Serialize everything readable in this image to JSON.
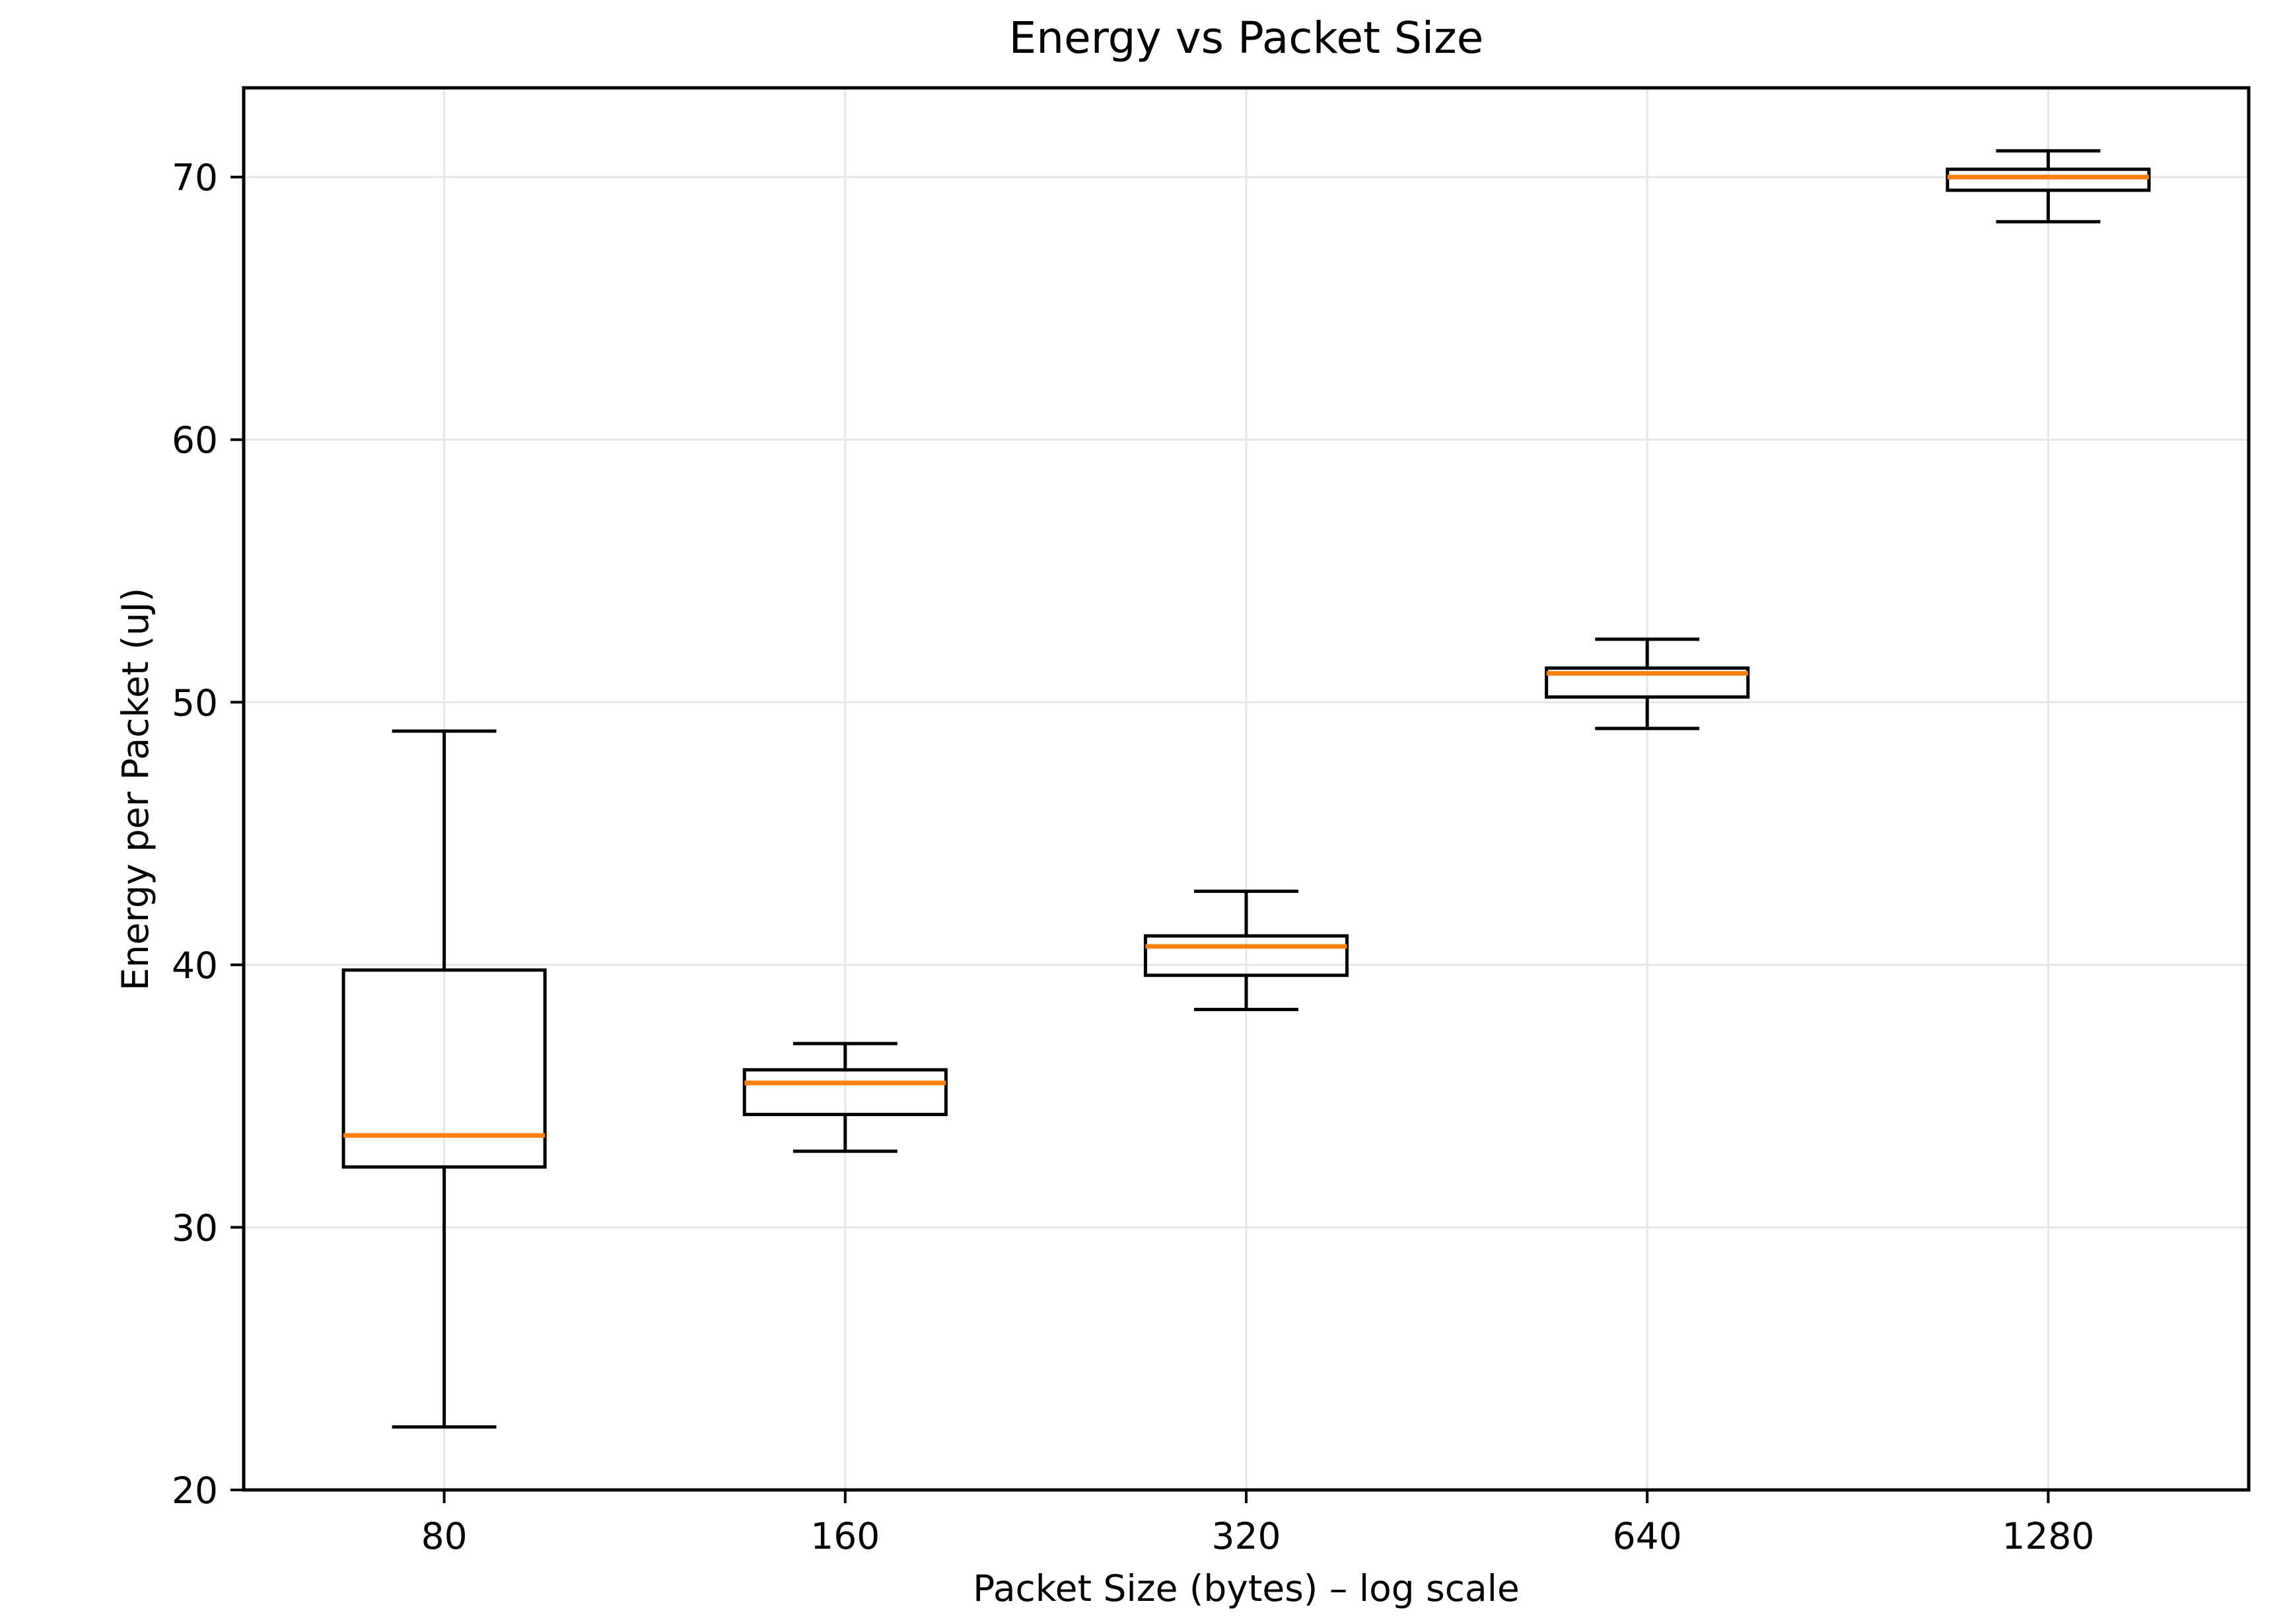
{
  "chart_data": {
    "type": "boxplot",
    "title": "Energy vs Packet Size",
    "xlabel": "Packet Size (bytes) – log scale",
    "ylabel": "Energy per Packet (uJ)",
    "categories": [
      "80",
      "160",
      "320",
      "640",
      "1280"
    ],
    "x_scale_note": "log scale — doublings evenly spaced at 10%, 30%, 50%, 70%, 90% of axis width",
    "ylim": [
      20,
      73.4
    ],
    "yticks": [
      20,
      30,
      40,
      50,
      60,
      70
    ],
    "grid": true,
    "legend": false,
    "series": [
      {
        "category": "80",
        "whisker_low": 22.4,
        "q1": 32.3,
        "median": 33.5,
        "q3": 39.8,
        "whisker_high": 48.9
      },
      {
        "category": "160",
        "whisker_low": 32.9,
        "q1": 34.3,
        "median": 35.5,
        "q3": 36.0,
        "whisker_high": 37.0
      },
      {
        "category": "320",
        "whisker_low": 38.3,
        "q1": 39.6,
        "median": 40.7,
        "q3": 41.1,
        "whisker_high": 42.8
      },
      {
        "category": "640",
        "whisker_low": 49.0,
        "q1": 50.2,
        "median": 51.1,
        "q3": 51.3,
        "whisker_high": 52.4
      },
      {
        "category": "1280",
        "whisker_low": 68.3,
        "q1": 69.5,
        "median": 70.0,
        "q3": 70.3,
        "whisker_high": 71.0
      }
    ],
    "colors": {
      "median": "#ff7f0e",
      "box_edge": "#000000",
      "grid": "#e6e6e6",
      "background": "#ffffff"
    }
  }
}
